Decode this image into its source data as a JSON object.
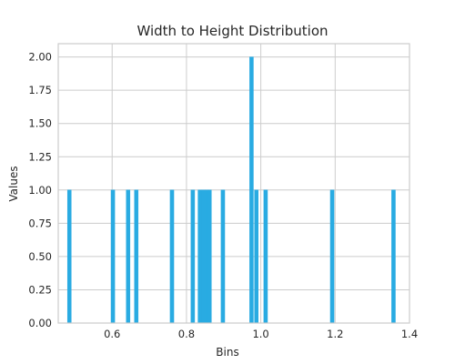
{
  "chart_data": {
    "type": "bar",
    "title": "Width to Height Distribution",
    "xlabel": "Bins",
    "ylabel": "Values",
    "xlim": [
      0.455,
      1.4
    ],
    "ylim": [
      0,
      2.1
    ],
    "bar_width": 0.01,
    "x_ticks": [
      {
        "value": 0.6,
        "label": "0.6"
      },
      {
        "value": 0.8,
        "label": "0.8"
      },
      {
        "value": 1.0,
        "label": "1.0"
      },
      {
        "value": 1.2,
        "label": "1.2"
      },
      {
        "value": 1.4,
        "label": "1.4"
      }
    ],
    "y_ticks": [
      {
        "value": 0.0,
        "label": "0.00"
      },
      {
        "value": 0.25,
        "label": "0.25"
      },
      {
        "value": 0.5,
        "label": "0.50"
      },
      {
        "value": 0.75,
        "label": "0.75"
      },
      {
        "value": 1.0,
        "label": "1.00"
      },
      {
        "value": 1.25,
        "label": "1.25"
      },
      {
        "value": 1.5,
        "label": "1.50"
      },
      {
        "value": 1.75,
        "label": "1.75"
      },
      {
        "value": 2.0,
        "label": "2.00"
      }
    ],
    "grid": true,
    "bar_color": "#29abe2",
    "bins": [
      {
        "x": 0.485,
        "value": 1
      },
      {
        "x": 0.602,
        "value": 1
      },
      {
        "x": 0.643,
        "value": 1
      },
      {
        "x": 0.665,
        "value": 1
      },
      {
        "x": 0.761,
        "value": 1
      },
      {
        "x": 0.817,
        "value": 1
      },
      {
        "x": 0.836,
        "value": 1
      },
      {
        "x": 0.846,
        "value": 1
      },
      {
        "x": 0.856,
        "value": 1
      },
      {
        "x": 0.862,
        "value": 1
      },
      {
        "x": 0.898,
        "value": 1
      },
      {
        "x": 0.975,
        "value": 2
      },
      {
        "x": 0.988,
        "value": 1
      },
      {
        "x": 1.013,
        "value": 1
      },
      {
        "x": 1.192,
        "value": 1
      },
      {
        "x": 1.357,
        "value": 1
      }
    ]
  }
}
